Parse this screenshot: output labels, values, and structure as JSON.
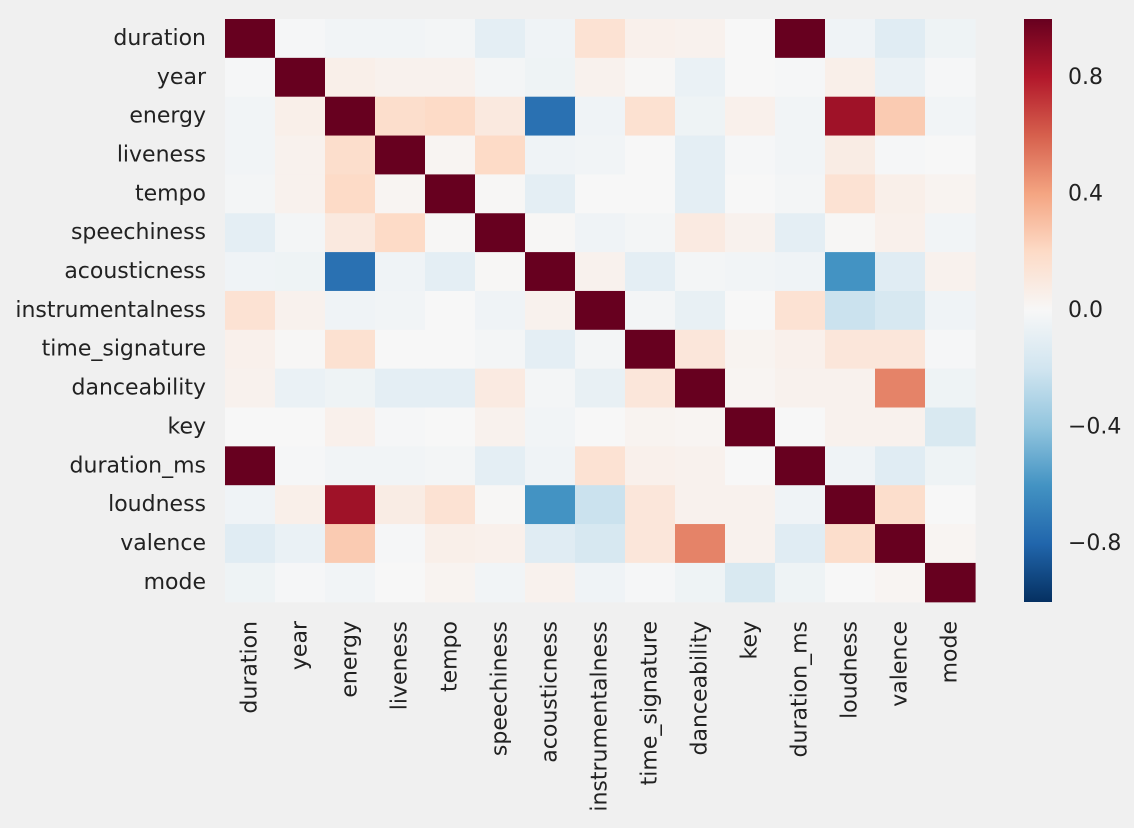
{
  "chart_data": {
    "type": "heatmap",
    "title": "",
    "xlabel": "",
    "ylabel": "",
    "rows": [
      "duration",
      "year",
      "energy",
      "liveness",
      "tempo",
      "speechiness",
      "acousticness",
      "instrumentalness",
      "time_signature",
      "danceability",
      "key",
      "duration_ms",
      "loudness",
      "valence",
      "mode"
    ],
    "columns": [
      "duration",
      "year",
      "energy",
      "liveness",
      "tempo",
      "speechiness",
      "acousticness",
      "instrumentalness",
      "time_signature",
      "danceability",
      "key",
      "duration_ms",
      "loudness",
      "valence",
      "mode"
    ],
    "values": [
      [
        1.0,
        -0.01,
        -0.03,
        -0.03,
        -0.02,
        -0.1,
        -0.04,
        0.15,
        0.05,
        0.04,
        0.0,
        1.0,
        -0.04,
        -0.12,
        -0.05
      ],
      [
        -0.01,
        1.0,
        0.06,
        0.04,
        0.04,
        -0.02,
        -0.05,
        0.04,
        0.01,
        -0.07,
        0.0,
        -0.01,
        0.06,
        -0.07,
        -0.01
      ],
      [
        -0.03,
        0.06,
        1.0,
        0.18,
        0.2,
        0.1,
        -0.75,
        -0.04,
        0.16,
        -0.05,
        0.05,
        -0.03,
        0.85,
        0.26,
        -0.03
      ],
      [
        -0.03,
        0.04,
        0.18,
        1.0,
        0.02,
        0.2,
        -0.04,
        -0.03,
        0.0,
        -0.1,
        -0.01,
        -0.03,
        0.08,
        -0.01,
        0.0
      ],
      [
        -0.02,
        0.04,
        0.2,
        0.02,
        1.0,
        0.01,
        -0.1,
        0.0,
        0.0,
        -0.1,
        0.0,
        -0.02,
        0.15,
        0.06,
        0.03
      ],
      [
        -0.1,
        -0.02,
        0.1,
        0.2,
        0.01,
        1.0,
        0.01,
        -0.04,
        -0.02,
        0.09,
        0.04,
        -0.1,
        0.01,
        0.05,
        -0.03
      ],
      [
        -0.04,
        -0.05,
        -0.75,
        -0.04,
        -0.1,
        0.01,
        1.0,
        0.04,
        -0.1,
        -0.02,
        -0.03,
        -0.04,
        -0.6,
        -0.12,
        0.04
      ],
      [
        0.15,
        0.04,
        -0.04,
        -0.03,
        0.0,
        -0.04,
        0.04,
        1.0,
        -0.02,
        -0.08,
        0.0,
        0.15,
        -0.22,
        -0.17,
        -0.04
      ],
      [
        0.05,
        0.01,
        0.16,
        0.0,
        0.0,
        -0.02,
        -0.1,
        -0.02,
        1.0,
        0.12,
        0.03,
        0.05,
        0.12,
        0.12,
        -0.01
      ],
      [
        0.04,
        -0.07,
        -0.05,
        -0.1,
        -0.1,
        0.09,
        -0.02,
        -0.08,
        0.12,
        1.0,
        0.02,
        0.04,
        0.04,
        0.5,
        -0.05
      ],
      [
        0.0,
        0.0,
        0.05,
        -0.01,
        0.0,
        0.04,
        -0.03,
        0.0,
        0.03,
        0.02,
        1.0,
        0.0,
        0.04,
        0.04,
        -0.16
      ],
      [
        1.0,
        -0.01,
        -0.03,
        -0.03,
        -0.02,
        -0.1,
        -0.04,
        0.15,
        0.05,
        0.04,
        0.0,
        1.0,
        -0.04,
        -0.12,
        -0.05
      ],
      [
        -0.04,
        0.06,
        0.85,
        0.08,
        0.15,
        0.01,
        -0.6,
        -0.22,
        0.12,
        0.04,
        0.04,
        -0.04,
        1.0,
        0.18,
        0.0
      ],
      [
        -0.12,
        -0.07,
        0.26,
        -0.01,
        0.06,
        0.05,
        -0.12,
        -0.17,
        0.12,
        0.5,
        0.04,
        -0.12,
        0.18,
        1.0,
        0.02
      ],
      [
        -0.05,
        -0.01,
        -0.03,
        0.0,
        0.03,
        -0.03,
        0.04,
        -0.04,
        -0.01,
        -0.05,
        -0.16,
        -0.05,
        0.0,
        0.02,
        1.0
      ]
    ],
    "colorbar": {
      "range": [
        -1,
        1
      ],
      "ticks": [
        0.8,
        0.4,
        0.0,
        -0.4,
        -0.8
      ],
      "tick_labels": [
        "0.8",
        "0.4",
        "0.0",
        "−0.4",
        "−0.8"
      ],
      "colormap": "RdBu_r",
      "color_min": "#053061",
      "color_mid": "#f7f7f7",
      "color_max": "#67001f"
    },
    "grid": false,
    "legend": "colorbar-right"
  }
}
